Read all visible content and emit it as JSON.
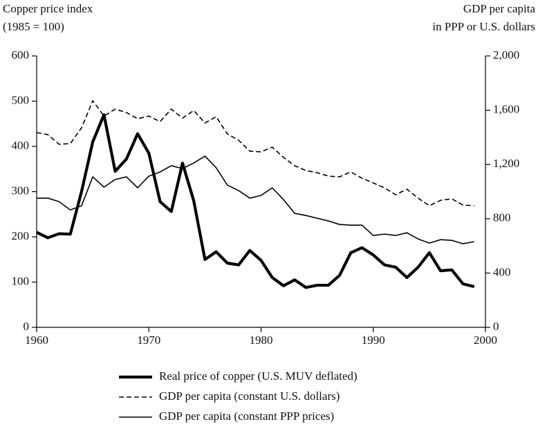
{
  "chart_data": {
    "type": "line",
    "ylabel": [
      "Copper price index",
      "(1985 = 100)"
    ],
    "y2label": [
      "GDP per capita",
      "in PPP or U.S. dollars"
    ],
    "x": [
      1960,
      1961,
      1962,
      1963,
      1964,
      1965,
      1966,
      1967,
      1968,
      1969,
      1970,
      1971,
      1972,
      1973,
      1974,
      1975,
      1976,
      1977,
      1978,
      1979,
      1980,
      1981,
      1982,
      1983,
      1984,
      1985,
      1986,
      1987,
      1988,
      1989,
      1990,
      1991,
      1992,
      1993,
      1994,
      1995,
      1996,
      1997,
      1998,
      1999
    ],
    "xlim": [
      1960,
      2000
    ],
    "xticks": [
      1960,
      1970,
      1980,
      1990,
      2000
    ],
    "ylim": [
      0,
      600
    ],
    "yticks": [
      0,
      100,
      200,
      300,
      400,
      500,
      600
    ],
    "y2lim": [
      0,
      2000
    ],
    "y2ticks": [
      0,
      400,
      800,
      {
        "value": 1200,
        "label": "1,200"
      },
      {
        "value": 1600,
        "label": "1,600"
      },
      {
        "value": 2000,
        "label": "2,000"
      }
    ],
    "series": [
      {
        "name": "Real price of copper (U.S. MUV deflated)",
        "color": "#000000",
        "style": "thick",
        "values": [
          210,
          198,
          207,
          206,
          300,
          410,
          470,
          345,
          372,
          428,
          385,
          278,
          256,
          363,
          280,
          150,
          167,
          142,
          138,
          170,
          148,
          110,
          92,
          105,
          88,
          93,
          93,
          115,
          165,
          176,
          160,
          138,
          133,
          110,
          133,
          165,
          125,
          127,
          96,
          90
        ]
      },
      {
        "name": "GDP per capita (constant U.S. dollars)",
        "color": "#000000",
        "style": "dashed",
        "axis": "y2",
        "values": [
          1435,
          1420,
          1349,
          1354,
          1470,
          1670,
          1557,
          1608,
          1583,
          1537,
          1557,
          1516,
          1608,
          1542,
          1598,
          1506,
          1552,
          1425,
          1379,
          1298,
          1293,
          1328,
          1252,
          1191,
          1155,
          1140,
          1114,
          1109,
          1145,
          1099,
          1064,
          1028,
          977,
          1018,
          952,
          896,
          936,
          947,
          901,
          896
        ]
      },
      {
        "name": "GDP per capita (constant PPP prices)",
        "color": "#000000",
        "style": "solid",
        "axis": "y2",
        "values": [
          952,
          952,
          926,
          865,
          896,
          1109,
          1033,
          1089,
          1109,
          1028,
          1114,
          1145,
          1191,
          1170,
          1211,
          1262,
          1176,
          1048,
          1008,
          952,
          972,
          1028,
          941,
          840,
          824,
          804,
          784,
          758,
          753,
          753,
          677,
          687,
          677,
          697,
          651,
          621,
          646,
          641,
          616,
          631
        ]
      }
    ]
  }
}
